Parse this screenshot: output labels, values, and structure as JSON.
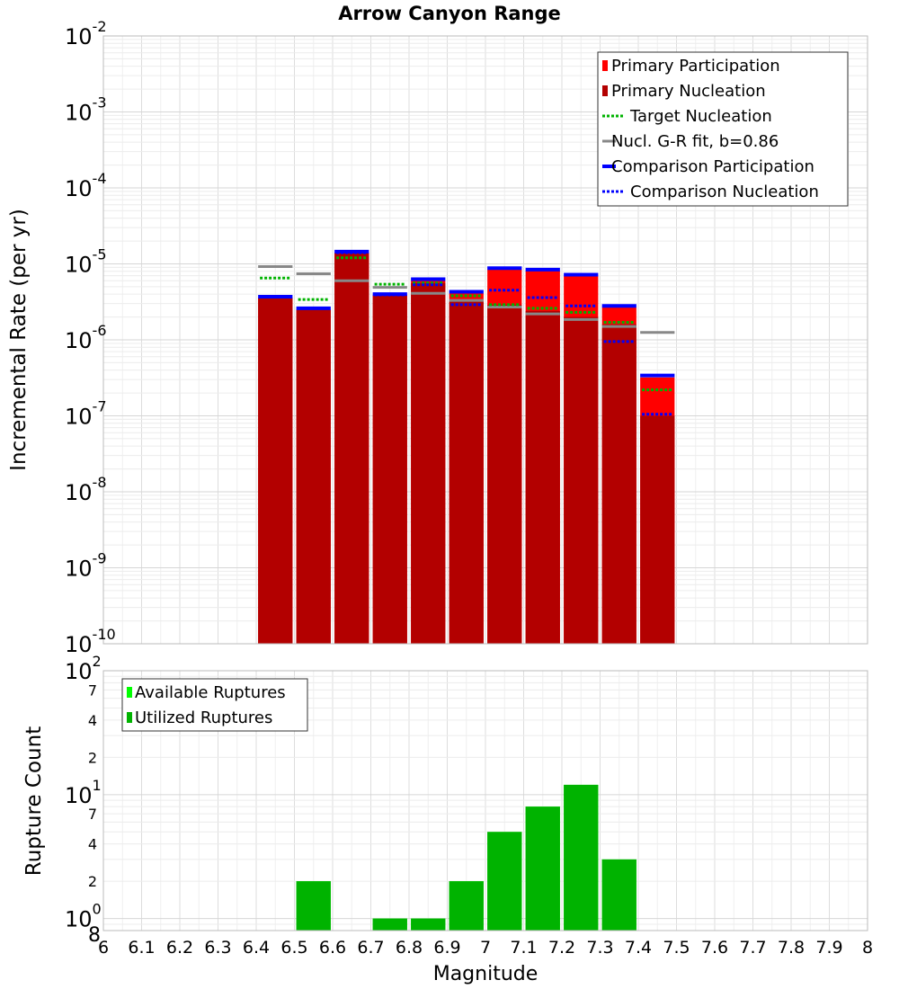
{
  "chart_data": [
    {
      "type": "bar",
      "title": "Arrow Canyon Range",
      "ylabel": "Incremental Rate (per yr)",
      "yscale": "log",
      "ylim": [
        1e-10,
        0.01
      ],
      "xlim": [
        6.0,
        8.0
      ],
      "y_ticks": [
        {
          "base": "10",
          "exp": "-2"
        },
        {
          "base": "10",
          "exp": "-3"
        },
        {
          "base": "10",
          "exp": "-4"
        },
        {
          "base": "10",
          "exp": "-5"
        },
        {
          "base": "10",
          "exp": "-6"
        },
        {
          "base": "10",
          "exp": "-7"
        },
        {
          "base": "10",
          "exp": "-8"
        },
        {
          "base": "10",
          "exp": "-9"
        },
        {
          "base": "10",
          "exp": "-10"
        }
      ],
      "grid": true,
      "legend_position": "top-right",
      "legend": [
        {
          "label": "Primary Participation",
          "color": "#ff0000",
          "style": "bar"
        },
        {
          "label": "Primary Nucleation",
          "color": "#b30000",
          "style": "bar"
        },
        {
          "label": "Target Nucleation",
          "color": "#00b300",
          "style": "dotted"
        },
        {
          "label": "Nucl. G-R fit, b=0.86",
          "color": "#888888",
          "style": "solid"
        },
        {
          "label": "Comparison Participation",
          "color": "#0000ff",
          "style": "thick"
        },
        {
          "label": "Comparison Nucleation",
          "color": "#0000ff",
          "style": "dotted"
        }
      ],
      "bins": [
        6.45,
        6.55,
        6.65,
        6.75,
        6.85,
        6.95,
        7.05,
        7.15,
        7.25,
        7.35,
        7.45
      ],
      "series": [
        {
          "name": "Primary Participation",
          "values": [
            3.6e-06,
            2.5e-06,
            1.4e-05,
            3.9e-06,
            6e-06,
            4.1e-06,
            8.5e-06,
            8.1e-06,
            6.9e-06,
            2.7e-06,
            3.2e-07
          ]
        },
        {
          "name": "Primary Nucleation",
          "values": [
            3.6e-06,
            2.5e-06,
            1.4e-05,
            3.9e-06,
            5.6e-06,
            3.2e-06,
            2.9e-06,
            2.4e-06,
            2e-06,
            1.6e-06,
            1e-07
          ]
        },
        {
          "name": "Target Nucleation",
          "values": [
            6.5e-06,
            3.4e-06,
            1.2e-05,
            5.4e-06,
            5.6e-06,
            3.8e-06,
            2.9e-06,
            2.6e-06,
            2.3e-06,
            1.7e-06,
            2.2e-07
          ]
        },
        {
          "name": "Nucl. G-R fit, b=0.86",
          "values": [
            9.2e-06,
            7.4e-06,
            6e-06,
            4.9e-06,
            4.1e-06,
            3.3e-06,
            2.7e-06,
            2.2e-06,
            1.85e-06,
            1.5e-06,
            1.25e-06
          ]
        },
        {
          "name": "Comparison Participation",
          "values": [
            3.7e-06,
            2.6e-06,
            1.45e-05,
            4e-06,
            6.3e-06,
            4.3e-06,
            8.8e-06,
            8.4e-06,
            7.2e-06,
            2.8e-06,
            3.4e-07
          ]
        },
        {
          "name": "Comparison Nucleation",
          "values": [
            3.7e-06,
            2.6e-06,
            1.4e-05,
            3.9e-06,
            5.3e-06,
            2.9e-06,
            4.5e-06,
            3.6e-06,
            2.8e-06,
            9.5e-07,
            1.05e-07
          ]
        }
      ]
    },
    {
      "type": "bar",
      "xlabel": "Magnitude",
      "ylabel": "Rupture Count",
      "yscale": "log",
      "ylim": [
        0.8,
        100
      ],
      "xlim": [
        6.0,
        8.0
      ],
      "x_ticks": [
        "6",
        "6.1",
        "6.2",
        "6.3",
        "6.4",
        "6.5",
        "6.6",
        "6.7",
        "6.8",
        "6.9",
        "7",
        "7.1",
        "7.2",
        "7.3",
        "7.4",
        "7.5",
        "7.6",
        "7.7",
        "7.8",
        "7.9",
        "8"
      ],
      "y_ticks": [
        {
          "base": "10",
          "exp": "2"
        },
        {
          "label": "7"
        },
        {
          "label": "4"
        },
        {
          "label": "2"
        },
        {
          "base": "10",
          "exp": "1"
        },
        {
          "label": "7"
        },
        {
          "label": "4"
        },
        {
          "label": "2"
        },
        {
          "base": "10",
          "exp": "0"
        },
        {
          "label": "8"
        }
      ],
      "grid": true,
      "legend_position": "top-left",
      "legend": [
        {
          "label": "Available Ruptures",
          "color": "#00ff00"
        },
        {
          "label": "Utilized Ruptures",
          "color": "#00b300"
        }
      ],
      "bins": [
        6.45,
        6.55,
        6.65,
        6.75,
        6.85,
        6.95,
        7.05,
        7.15,
        7.25,
        7.35,
        7.45
      ],
      "series": [
        {
          "name": "Available Ruptures",
          "values": [
            0,
            2,
            0,
            1,
            1,
            2,
            5,
            8,
            12,
            3,
            0
          ]
        },
        {
          "name": "Utilized Ruptures",
          "values": [
            0,
            2,
            0,
            1,
            1,
            2,
            5,
            8,
            12,
            3,
            0
          ]
        }
      ]
    }
  ]
}
